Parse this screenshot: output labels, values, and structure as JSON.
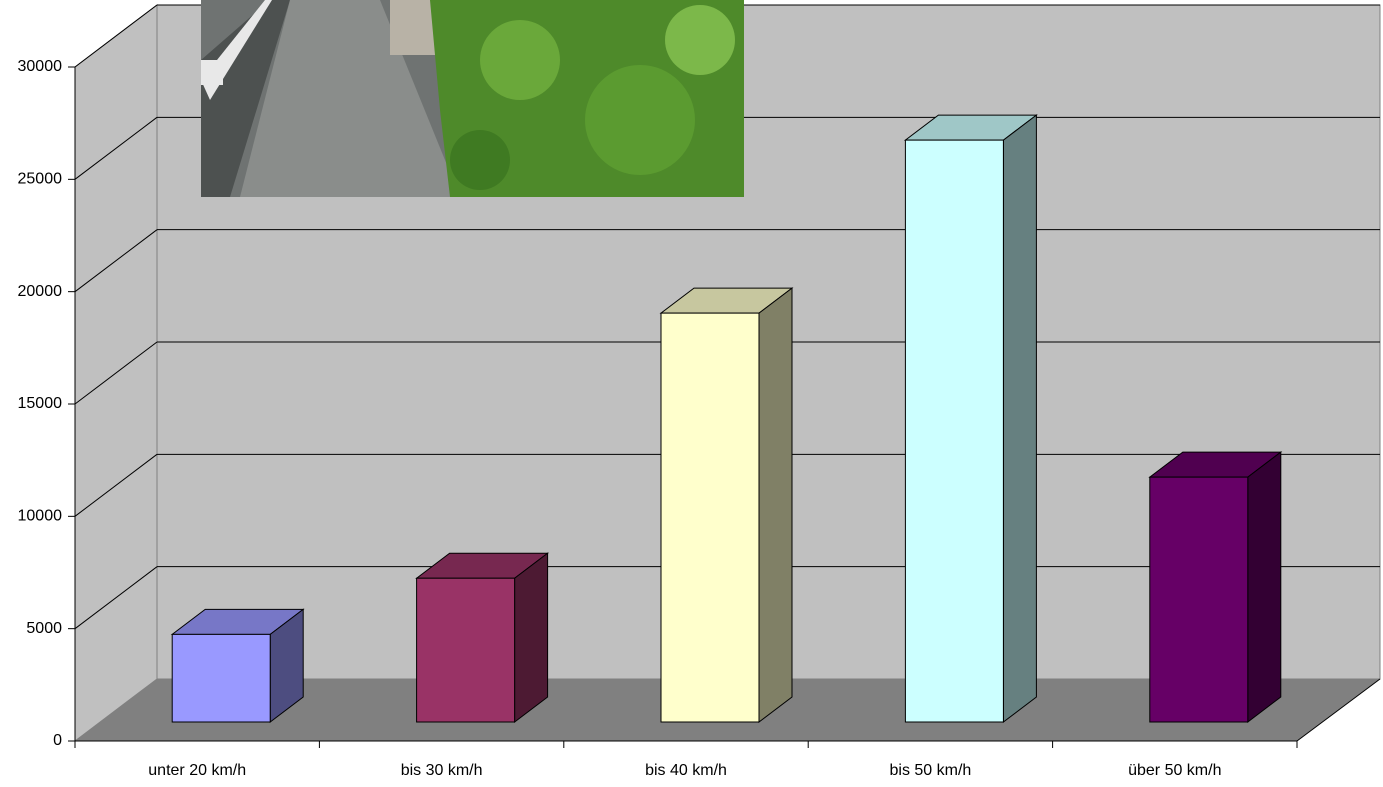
{
  "chart_data": {
    "type": "bar",
    "categories": [
      "unter 20 km/h",
      "bis 30 km/h",
      "bis 40 km/h",
      "bis 50 km/h",
      "über 50 km/h"
    ],
    "values": [
      3900,
      6400,
      18200,
      25900,
      10900
    ],
    "colors": [
      "#9999ff",
      "#993366",
      "#ffffcc",
      "#ccffff",
      "#660066"
    ],
    "ylim": [
      0,
      30000
    ],
    "yticks": [
      0,
      5000,
      10000,
      15000,
      20000,
      25000,
      30000
    ],
    "grid": true
  }
}
